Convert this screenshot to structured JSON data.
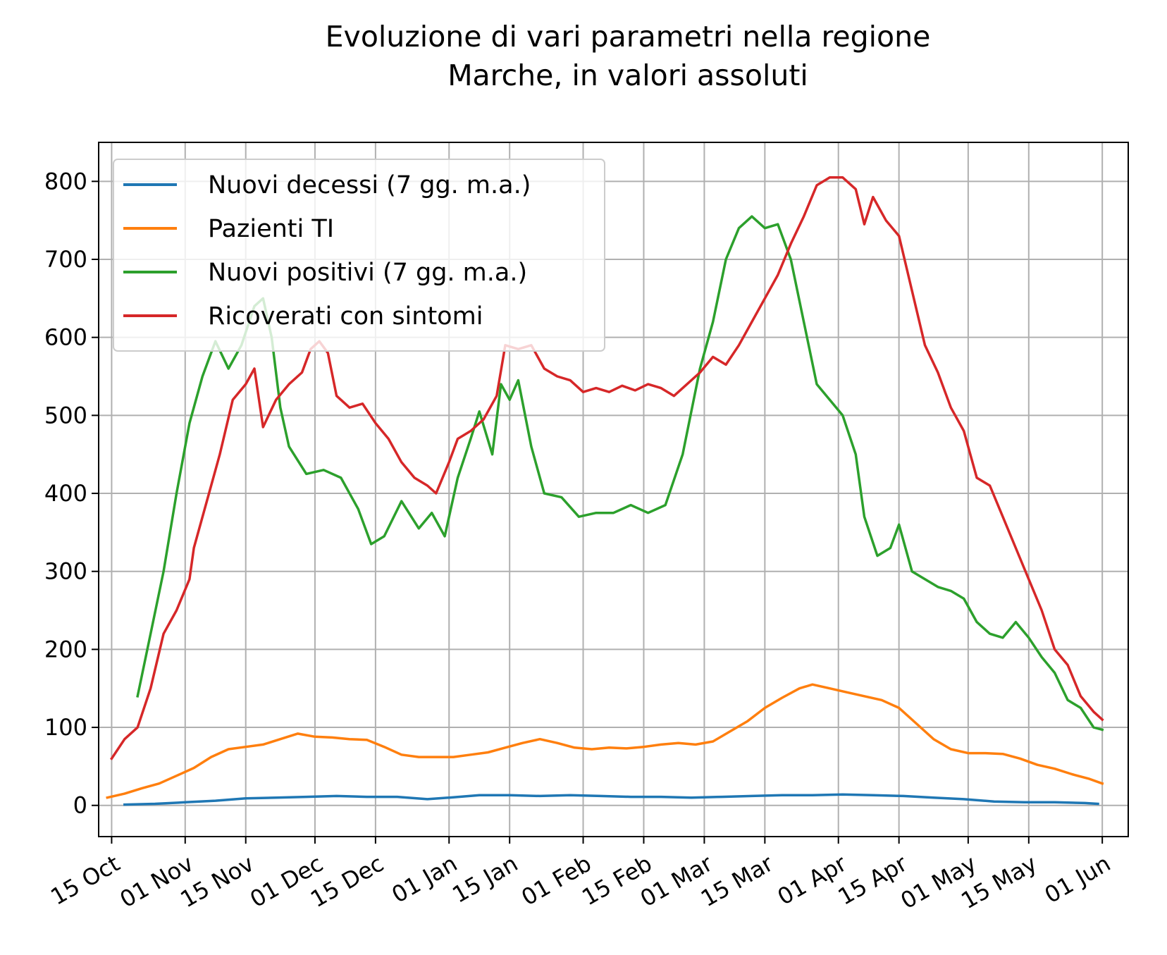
{
  "chart_data": {
    "type": "line",
    "title_lines": [
      "Evoluzione di vari parametri nella regione",
      "Marche, in valori assoluti"
    ],
    "xlabel": "",
    "ylabel": "",
    "x_range": [
      "2020-10-12",
      "2021-06-07"
    ],
    "ylim": [
      -40,
      850
    ],
    "grid": true,
    "legend_position": "top-left",
    "x_ticks": [
      {
        "date": "2020-10-15",
        "label": "15 Oct"
      },
      {
        "date": "2020-11-01",
        "label": "01 Nov"
      },
      {
        "date": "2020-11-15",
        "label": "15 Nov"
      },
      {
        "date": "2020-12-01",
        "label": "01 Dec"
      },
      {
        "date": "2020-12-15",
        "label": "15 Dec"
      },
      {
        "date": "2021-01-01",
        "label": "01 Jan"
      },
      {
        "date": "2021-01-15",
        "label": "15 Jan"
      },
      {
        "date": "2021-02-01",
        "label": "01 Feb"
      },
      {
        "date": "2021-02-15",
        "label": "15 Feb"
      },
      {
        "date": "2021-03-01",
        "label": "01 Mar"
      },
      {
        "date": "2021-03-15",
        "label": "15 Mar"
      },
      {
        "date": "2021-04-01",
        "label": "01 Apr"
      },
      {
        "date": "2021-04-15",
        "label": "15 Apr"
      },
      {
        "date": "2021-05-01",
        "label": "01 May"
      },
      {
        "date": "2021-05-15",
        "label": "15 May"
      },
      {
        "date": "2021-06-01",
        "label": "01 Jun"
      }
    ],
    "y_ticks": [
      0,
      100,
      200,
      300,
      400,
      500,
      600,
      700,
      800
    ],
    "series": [
      {
        "name": "Nuovi decessi (7 gg. m.a.)",
        "color": "#1f77b4",
        "points": [
          [
            "2020-10-18",
            1
          ],
          [
            "2020-10-25",
            2
          ],
          [
            "2020-11-01",
            4
          ],
          [
            "2020-11-08",
            6
          ],
          [
            "2020-11-15",
            9
          ],
          [
            "2020-11-22",
            10
          ],
          [
            "2020-11-29",
            11
          ],
          [
            "2020-12-06",
            12
          ],
          [
            "2020-12-13",
            11
          ],
          [
            "2020-12-20",
            11
          ],
          [
            "2020-12-27",
            8
          ],
          [
            "2021-01-01",
            10
          ],
          [
            "2021-01-08",
            13
          ],
          [
            "2021-01-15",
            13
          ],
          [
            "2021-01-22",
            12
          ],
          [
            "2021-01-29",
            13
          ],
          [
            "2021-02-05",
            12
          ],
          [
            "2021-02-12",
            11
          ],
          [
            "2021-02-19",
            11
          ],
          [
            "2021-02-26",
            10
          ],
          [
            "2021-03-05",
            11
          ],
          [
            "2021-03-12",
            12
          ],
          [
            "2021-03-19",
            13
          ],
          [
            "2021-03-26",
            13
          ],
          [
            "2021-04-02",
            14
          ],
          [
            "2021-04-09",
            13
          ],
          [
            "2021-04-16",
            12
          ],
          [
            "2021-04-23",
            10
          ],
          [
            "2021-04-30",
            8
          ],
          [
            "2021-05-07",
            5
          ],
          [
            "2021-05-14",
            4
          ],
          [
            "2021-05-21",
            4
          ],
          [
            "2021-05-28",
            3
          ],
          [
            "2021-05-31",
            2
          ]
        ]
      },
      {
        "name": "Pazienti TI",
        "color": "#ff7f0e",
        "points": [
          [
            "2020-10-14",
            10
          ],
          [
            "2020-10-18",
            15
          ],
          [
            "2020-10-22",
            22
          ],
          [
            "2020-10-26",
            28
          ],
          [
            "2020-10-30",
            38
          ],
          [
            "2020-11-03",
            48
          ],
          [
            "2020-11-07",
            62
          ],
          [
            "2020-11-11",
            72
          ],
          [
            "2020-11-15",
            75
          ],
          [
            "2020-11-19",
            78
          ],
          [
            "2020-11-23",
            85
          ],
          [
            "2020-11-27",
            92
          ],
          [
            "2020-12-01",
            88
          ],
          [
            "2020-12-05",
            87
          ],
          [
            "2020-12-09",
            85
          ],
          [
            "2020-12-13",
            84
          ],
          [
            "2020-12-17",
            75
          ],
          [
            "2020-12-21",
            65
          ],
          [
            "2020-12-25",
            62
          ],
          [
            "2020-12-29",
            62
          ],
          [
            "2021-01-02",
            62
          ],
          [
            "2021-01-06",
            65
          ],
          [
            "2021-01-10",
            68
          ],
          [
            "2021-01-14",
            74
          ],
          [
            "2021-01-18",
            80
          ],
          [
            "2021-01-22",
            85
          ],
          [
            "2021-01-26",
            80
          ],
          [
            "2021-01-30",
            74
          ],
          [
            "2021-02-03",
            72
          ],
          [
            "2021-02-07",
            74
          ],
          [
            "2021-02-11",
            73
          ],
          [
            "2021-02-15",
            75
          ],
          [
            "2021-02-19",
            78
          ],
          [
            "2021-02-23",
            80
          ],
          [
            "2021-02-27",
            78
          ],
          [
            "2021-03-03",
            82
          ],
          [
            "2021-03-07",
            95
          ],
          [
            "2021-03-11",
            108
          ],
          [
            "2021-03-15",
            125
          ],
          [
            "2021-03-19",
            138
          ],
          [
            "2021-03-23",
            150
          ],
          [
            "2021-03-26",
            155
          ],
          [
            "2021-03-30",
            150
          ],
          [
            "2021-04-03",
            145
          ],
          [
            "2021-04-07",
            140
          ],
          [
            "2021-04-11",
            135
          ],
          [
            "2021-04-15",
            125
          ],
          [
            "2021-04-19",
            105
          ],
          [
            "2021-04-23",
            85
          ],
          [
            "2021-04-27",
            72
          ],
          [
            "2021-05-01",
            67
          ],
          [
            "2021-05-05",
            67
          ],
          [
            "2021-05-09",
            66
          ],
          [
            "2021-05-13",
            60
          ],
          [
            "2021-05-17",
            52
          ],
          [
            "2021-05-21",
            47
          ],
          [
            "2021-05-25",
            40
          ],
          [
            "2021-05-29",
            34
          ],
          [
            "2021-06-01",
            28
          ]
        ]
      },
      {
        "name": "Nuovi positivi (7 gg. m.a.)",
        "color": "#2ca02c",
        "points": [
          [
            "2020-10-21",
            140
          ],
          [
            "2020-10-24",
            220
          ],
          [
            "2020-10-27",
            300
          ],
          [
            "2020-10-30",
            400
          ],
          [
            "2020-11-02",
            490
          ],
          [
            "2020-11-05",
            550
          ],
          [
            "2020-11-08",
            595
          ],
          [
            "2020-11-11",
            560
          ],
          [
            "2020-11-14",
            590
          ],
          [
            "2020-11-17",
            640
          ],
          [
            "2020-11-19",
            650
          ],
          [
            "2020-11-21",
            600
          ],
          [
            "2020-11-23",
            510
          ],
          [
            "2020-11-25",
            460
          ],
          [
            "2020-11-29",
            425
          ],
          [
            "2020-12-03",
            430
          ],
          [
            "2020-12-07",
            420
          ],
          [
            "2020-12-11",
            380
          ],
          [
            "2020-12-14",
            335
          ],
          [
            "2020-12-17",
            345
          ],
          [
            "2020-12-21",
            390
          ],
          [
            "2020-12-25",
            355
          ],
          [
            "2020-12-28",
            375
          ],
          [
            "2020-12-31",
            345
          ],
          [
            "2021-01-03",
            420
          ],
          [
            "2021-01-06",
            470
          ],
          [
            "2021-01-08",
            505
          ],
          [
            "2021-01-11",
            450
          ],
          [
            "2021-01-13",
            540
          ],
          [
            "2021-01-15",
            520
          ],
          [
            "2021-01-17",
            545
          ],
          [
            "2021-01-20",
            460
          ],
          [
            "2021-01-23",
            400
          ],
          [
            "2021-01-27",
            395
          ],
          [
            "2021-01-31",
            370
          ],
          [
            "2021-02-04",
            375
          ],
          [
            "2021-02-08",
            375
          ],
          [
            "2021-02-12",
            385
          ],
          [
            "2021-02-16",
            375
          ],
          [
            "2021-02-20",
            385
          ],
          [
            "2021-02-24",
            450
          ],
          [
            "2021-02-28",
            560
          ],
          [
            "2021-03-03",
            620
          ],
          [
            "2021-03-06",
            700
          ],
          [
            "2021-03-09",
            740
          ],
          [
            "2021-03-12",
            755
          ],
          [
            "2021-03-15",
            740
          ],
          [
            "2021-03-18",
            745
          ],
          [
            "2021-03-21",
            700
          ],
          [
            "2021-03-24",
            620
          ],
          [
            "2021-03-27",
            540
          ],
          [
            "2021-03-30",
            520
          ],
          [
            "2021-04-02",
            500
          ],
          [
            "2021-04-05",
            450
          ],
          [
            "2021-04-07",
            370
          ],
          [
            "2021-04-10",
            320
          ],
          [
            "2021-04-13",
            330
          ],
          [
            "2021-04-15",
            360
          ],
          [
            "2021-04-18",
            300
          ],
          [
            "2021-04-21",
            290
          ],
          [
            "2021-04-24",
            280
          ],
          [
            "2021-04-27",
            275
          ],
          [
            "2021-04-30",
            265
          ],
          [
            "2021-05-03",
            235
          ],
          [
            "2021-05-06",
            220
          ],
          [
            "2021-05-09",
            215
          ],
          [
            "2021-05-12",
            235
          ],
          [
            "2021-05-15",
            215
          ],
          [
            "2021-05-18",
            190
          ],
          [
            "2021-05-21",
            170
          ],
          [
            "2021-05-24",
            135
          ],
          [
            "2021-05-27",
            125
          ],
          [
            "2021-05-30",
            100
          ],
          [
            "2021-06-01",
            97
          ]
        ]
      },
      {
        "name": "Ricoverati con sintomi",
        "color": "#d62728",
        "points": [
          [
            "2020-10-15",
            60
          ],
          [
            "2020-10-18",
            85
          ],
          [
            "2020-10-21",
            100
          ],
          [
            "2020-10-24",
            150
          ],
          [
            "2020-10-27",
            220
          ],
          [
            "2020-10-30",
            250
          ],
          [
            "2020-11-02",
            290
          ],
          [
            "2020-11-03",
            330
          ],
          [
            "2020-11-06",
            390
          ],
          [
            "2020-11-09",
            450
          ],
          [
            "2020-11-12",
            520
          ],
          [
            "2020-11-15",
            540
          ],
          [
            "2020-11-17",
            560
          ],
          [
            "2020-11-19",
            485
          ],
          [
            "2020-11-22",
            520
          ],
          [
            "2020-11-25",
            540
          ],
          [
            "2020-11-28",
            555
          ],
          [
            "2020-11-30",
            585
          ],
          [
            "2020-12-02",
            595
          ],
          [
            "2020-12-04",
            580
          ],
          [
            "2020-12-06",
            525
          ],
          [
            "2020-12-09",
            510
          ],
          [
            "2020-12-12",
            515
          ],
          [
            "2020-12-15",
            490
          ],
          [
            "2020-12-18",
            470
          ],
          [
            "2020-12-21",
            440
          ],
          [
            "2020-12-24",
            420
          ],
          [
            "2020-12-27",
            410
          ],
          [
            "2020-12-29",
            400
          ],
          [
            "2021-01-01",
            440
          ],
          [
            "2021-01-03",
            470
          ],
          [
            "2021-01-06",
            480
          ],
          [
            "2021-01-09",
            495
          ],
          [
            "2021-01-12",
            525
          ],
          [
            "2021-01-14",
            590
          ],
          [
            "2021-01-17",
            585
          ],
          [
            "2021-01-20",
            590
          ],
          [
            "2021-01-23",
            560
          ],
          [
            "2021-01-26",
            550
          ],
          [
            "2021-01-29",
            545
          ],
          [
            "2021-02-01",
            530
          ],
          [
            "2021-02-04",
            535
          ],
          [
            "2021-02-07",
            530
          ],
          [
            "2021-02-10",
            538
          ],
          [
            "2021-02-13",
            532
          ],
          [
            "2021-02-16",
            540
          ],
          [
            "2021-02-19",
            535
          ],
          [
            "2021-02-22",
            525
          ],
          [
            "2021-02-25",
            540
          ],
          [
            "2021-02-28",
            555
          ],
          [
            "2021-03-03",
            575
          ],
          [
            "2021-03-06",
            565
          ],
          [
            "2021-03-09",
            590
          ],
          [
            "2021-03-12",
            620
          ],
          [
            "2021-03-15",
            650
          ],
          [
            "2021-03-18",
            680
          ],
          [
            "2021-03-21",
            720
          ],
          [
            "2021-03-24",
            755
          ],
          [
            "2021-03-27",
            795
          ],
          [
            "2021-03-30",
            805
          ],
          [
            "2021-04-02",
            805
          ],
          [
            "2021-04-05",
            790
          ],
          [
            "2021-04-07",
            745
          ],
          [
            "2021-04-09",
            780
          ],
          [
            "2021-04-12",
            750
          ],
          [
            "2021-04-15",
            730
          ],
          [
            "2021-04-18",
            660
          ],
          [
            "2021-04-21",
            590
          ],
          [
            "2021-04-24",
            555
          ],
          [
            "2021-04-27",
            510
          ],
          [
            "2021-04-30",
            480
          ],
          [
            "2021-05-03",
            420
          ],
          [
            "2021-05-06",
            410
          ],
          [
            "2021-05-09",
            370
          ],
          [
            "2021-05-12",
            330
          ],
          [
            "2021-05-15",
            290
          ],
          [
            "2021-05-18",
            250
          ],
          [
            "2021-05-21",
            200
          ],
          [
            "2021-05-24",
            180
          ],
          [
            "2021-05-27",
            140
          ],
          [
            "2021-05-30",
            120
          ],
          [
            "2021-06-01",
            110
          ]
        ]
      }
    ]
  }
}
